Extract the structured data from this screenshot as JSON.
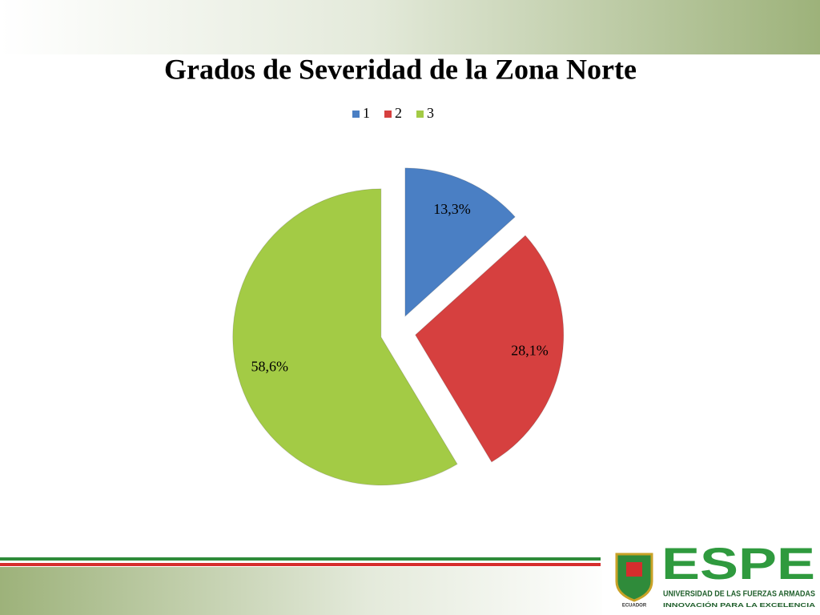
{
  "chart_data": {
    "type": "pie",
    "title": "Grados de Severidad de la Zona Norte",
    "categories": [
      "1",
      "2",
      "3"
    ],
    "values": [
      13.3,
      28.1,
      58.6
    ],
    "value_labels": [
      "13,3%",
      "28,1%",
      "58,6%"
    ],
    "colors": [
      "#4a7fc4",
      "#d6403f",
      "#a3cb45"
    ],
    "legend": "top"
  },
  "logo": {
    "name": "ESPE",
    "line1": "UNIVERSIDAD DE LAS FUERZAS ARMADAS",
    "line2": "INNOVACIÓN PARA LA EXCELENCIA",
    "crest_label": "ECUADOR"
  }
}
